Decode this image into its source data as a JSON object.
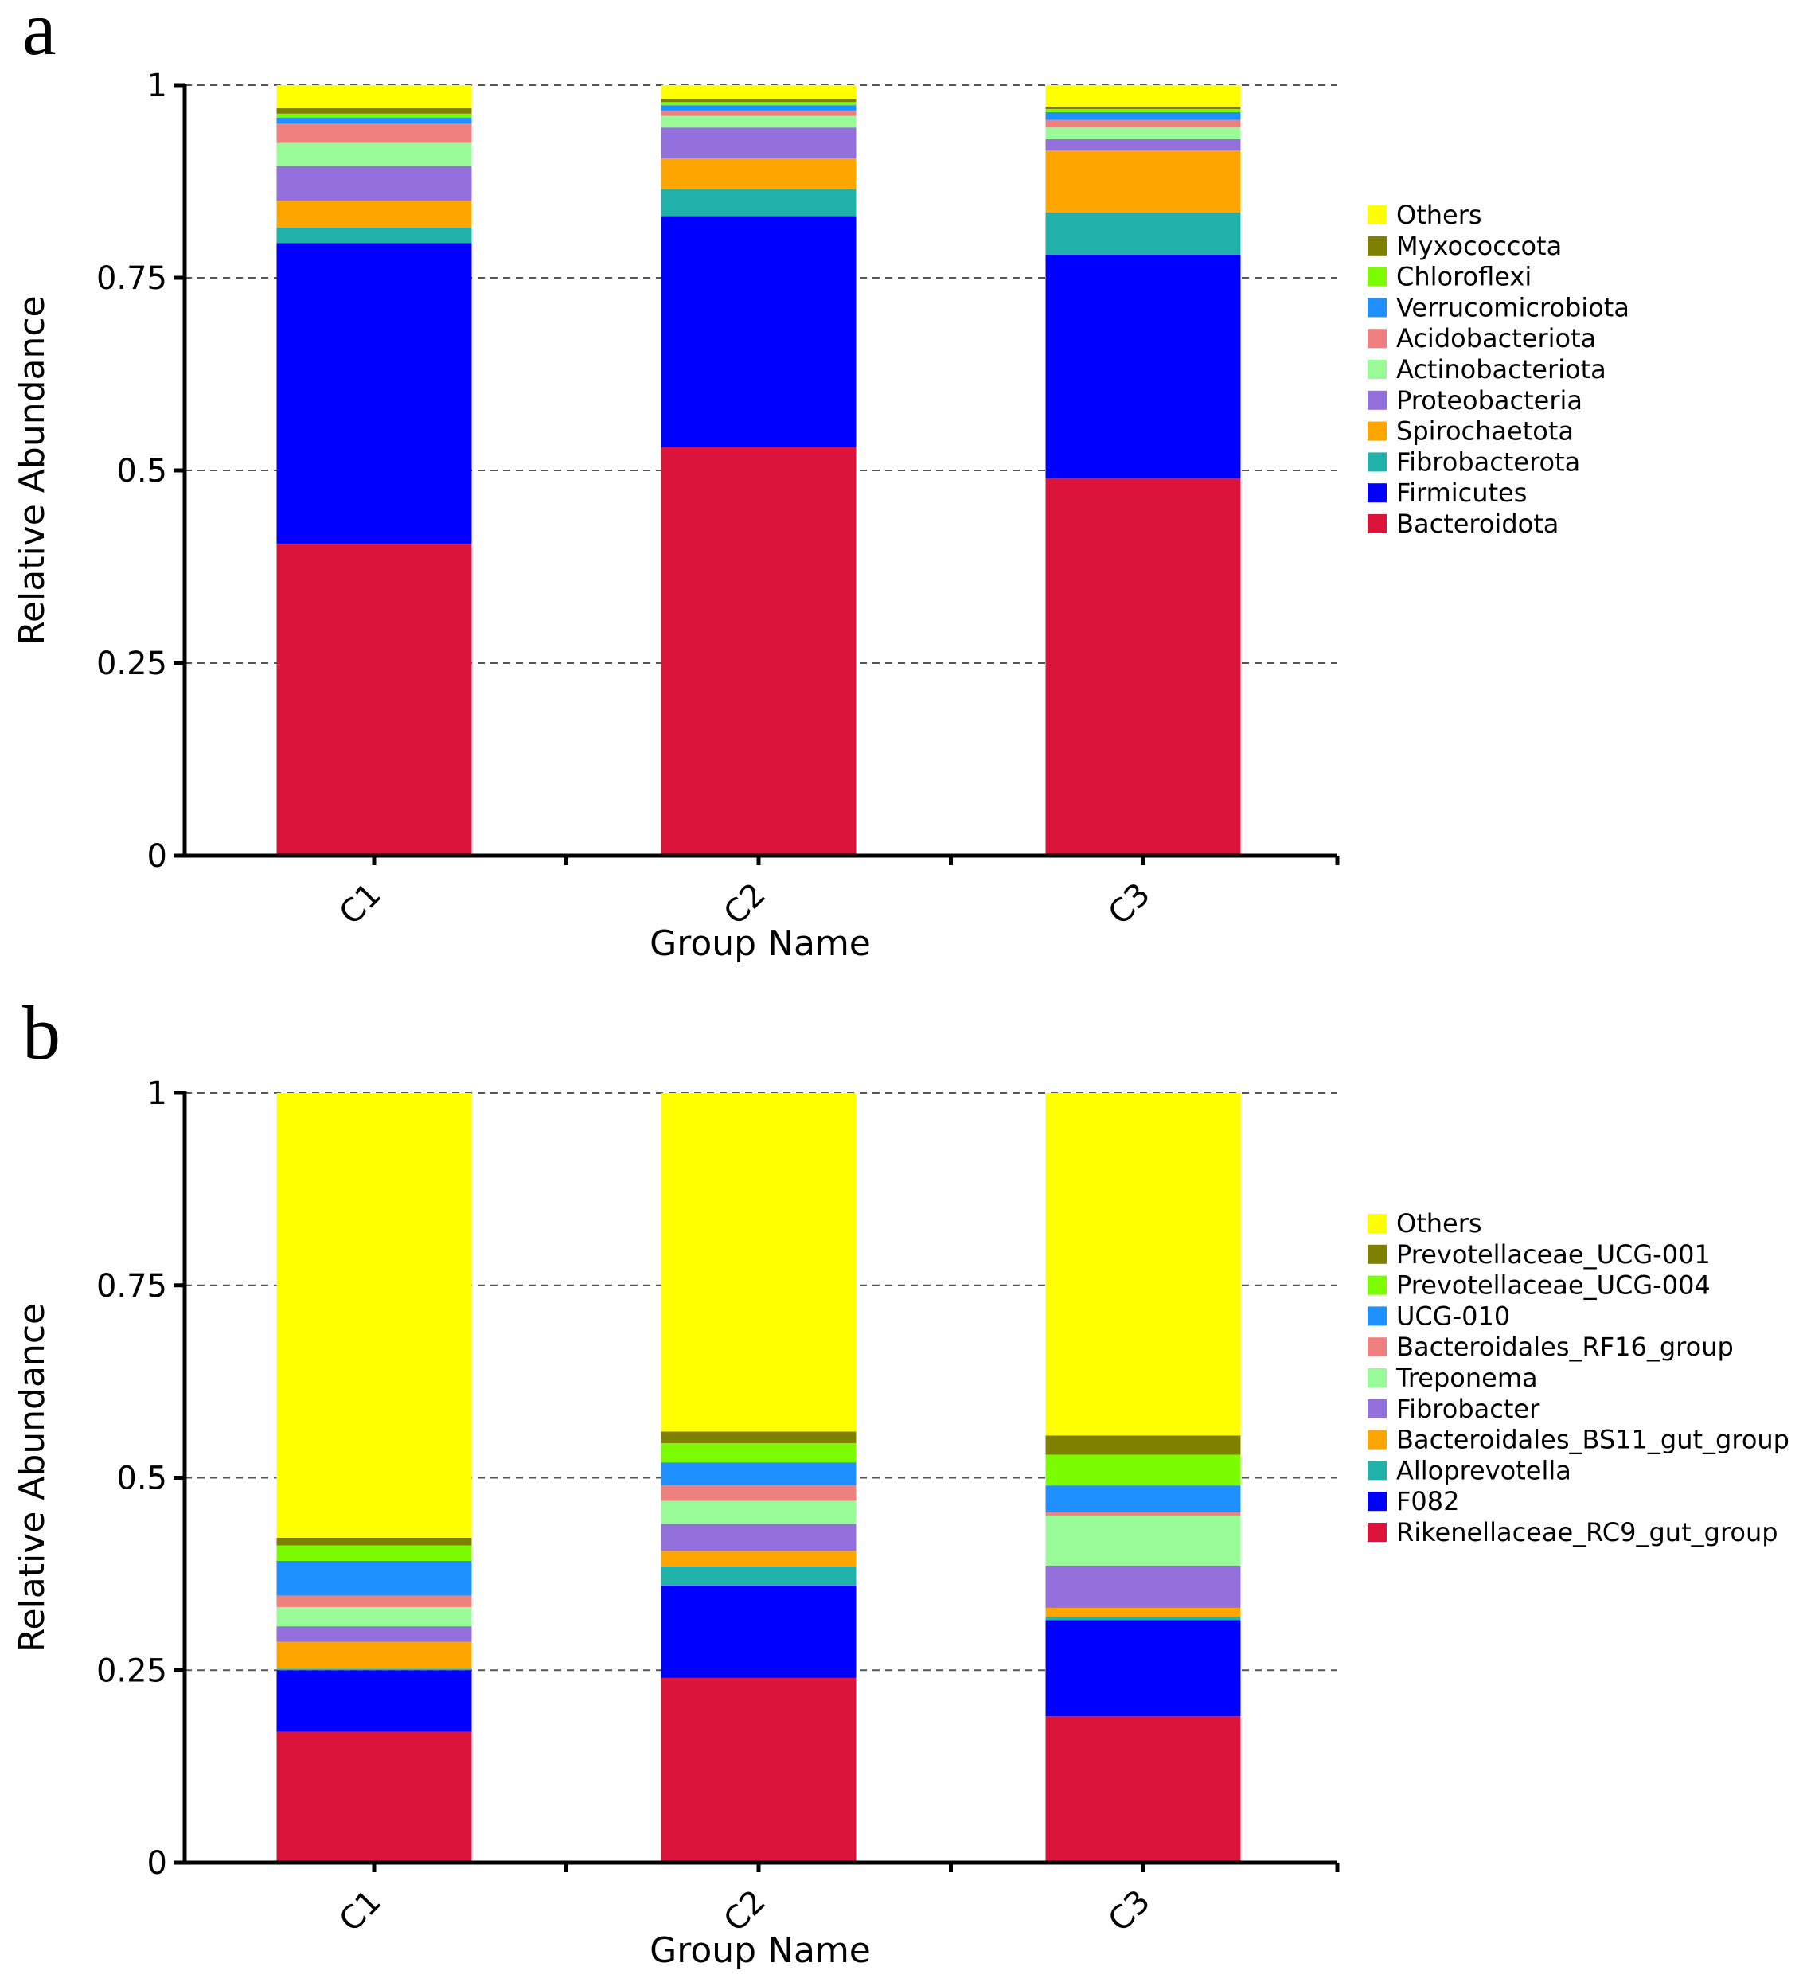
{
  "chart_data": [
    {
      "panel_label": "a",
      "type": "bar",
      "stacked": true,
      "xlabel": "Group Name",
      "ylabel": "Relative Abundance",
      "ylim": [
        0,
        1
      ],
      "yticks": [
        0,
        0.25,
        0.5,
        0.75,
        1
      ],
      "ytick_labels": [
        "0",
        "0.25",
        "0.5",
        "0.75",
        "1"
      ],
      "grid": "horizontal dashed",
      "legend_position": "right",
      "categories": [
        "C1",
        "C2",
        "C3"
      ],
      "series": [
        {
          "name": "Bacteroidota",
          "color": "#DC143C",
          "values": [
            0.405,
            0.53,
            0.49
          ]
        },
        {
          "name": "Firmicutes",
          "color": "#0000FF",
          "values": [
            0.39,
            0.3,
            0.29
          ]
        },
        {
          "name": "Fibrobacterota",
          "color": "#20B2AA",
          "values": [
            0.02,
            0.035,
            0.055
          ]
        },
        {
          "name": "Spirochaetota",
          "color": "#FFA500",
          "values": [
            0.035,
            0.04,
            0.08
          ]
        },
        {
          "name": "Proteobacteria",
          "color": "#9370DB",
          "values": [
            0.045,
            0.04,
            0.015
          ]
        },
        {
          "name": "Actinobacteriota",
          "color": "#98FB98",
          "values": [
            0.03,
            0.015,
            0.015
          ]
        },
        {
          "name": "Acidobacteriota",
          "color": "#F08080",
          "values": [
            0.025,
            0.007,
            0.01
          ]
        },
        {
          "name": "Verrucomicrobiota",
          "color": "#1E90FF",
          "values": [
            0.008,
            0.007,
            0.01
          ]
        },
        {
          "name": "Chloroflexi",
          "color": "#7CFC00",
          "values": [
            0.005,
            0.004,
            0.004
          ]
        },
        {
          "name": "Myxococcota",
          "color": "#808000",
          "values": [
            0.007,
            0.004,
            0.003
          ]
        },
        {
          "name": "Others",
          "color": "#FFFF00",
          "values": [
            0.03,
            0.018,
            0.028
          ]
        }
      ]
    },
    {
      "panel_label": "b",
      "type": "bar",
      "stacked": true,
      "xlabel": "Group Name",
      "ylabel": "Relative Abundance",
      "ylim": [
        0,
        1
      ],
      "yticks": [
        0,
        0.25,
        0.5,
        0.75,
        1
      ],
      "ytick_labels": [
        "0",
        "0.25",
        "0.5",
        "0.75",
        "1"
      ],
      "grid": "horizontal dashed",
      "legend_position": "right",
      "categories": [
        "C1",
        "C2",
        "C3"
      ],
      "series": [
        {
          "name": "Rikenellaceae_RC9_gut_group",
          "color": "#DC143C",
          "values": [
            0.17,
            0.24,
            0.19
          ]
        },
        {
          "name": "F082",
          "color": "#0000FF",
          "values": [
            0.08,
            0.12,
            0.125
          ]
        },
        {
          "name": "Alloprevotella",
          "color": "#20B2AA",
          "values": [
            0.002,
            0.025,
            0.004
          ]
        },
        {
          "name": "Bacteroidales_BS11_gut_group",
          "color": "#FFA500",
          "values": [
            0.035,
            0.02,
            0.012
          ]
        },
        {
          "name": "Fibrobacter",
          "color": "#9370DB",
          "values": [
            0.02,
            0.035,
            0.055
          ]
        },
        {
          "name": "Treponema",
          "color": "#98FB98",
          "values": [
            0.025,
            0.03,
            0.065
          ]
        },
        {
          "name": "Bacteroidales_RF16_group",
          "color": "#F08080",
          "values": [
            0.015,
            0.02,
            0.004
          ]
        },
        {
          "name": "UCG-010",
          "color": "#1E90FF",
          "values": [
            0.045,
            0.03,
            0.035
          ]
        },
        {
          "name": "Prevotellaceae_UCG-004",
          "color": "#7CFC00",
          "values": [
            0.02,
            0.025,
            0.04
          ]
        },
        {
          "name": "Prevotellaceae_UCG-001",
          "color": "#808000",
          "values": [
            0.01,
            0.015,
            0.025
          ]
        },
        {
          "name": "Others",
          "color": "#FFFF00",
          "values": [
            0.578,
            0.44,
            0.445
          ]
        }
      ]
    }
  ]
}
